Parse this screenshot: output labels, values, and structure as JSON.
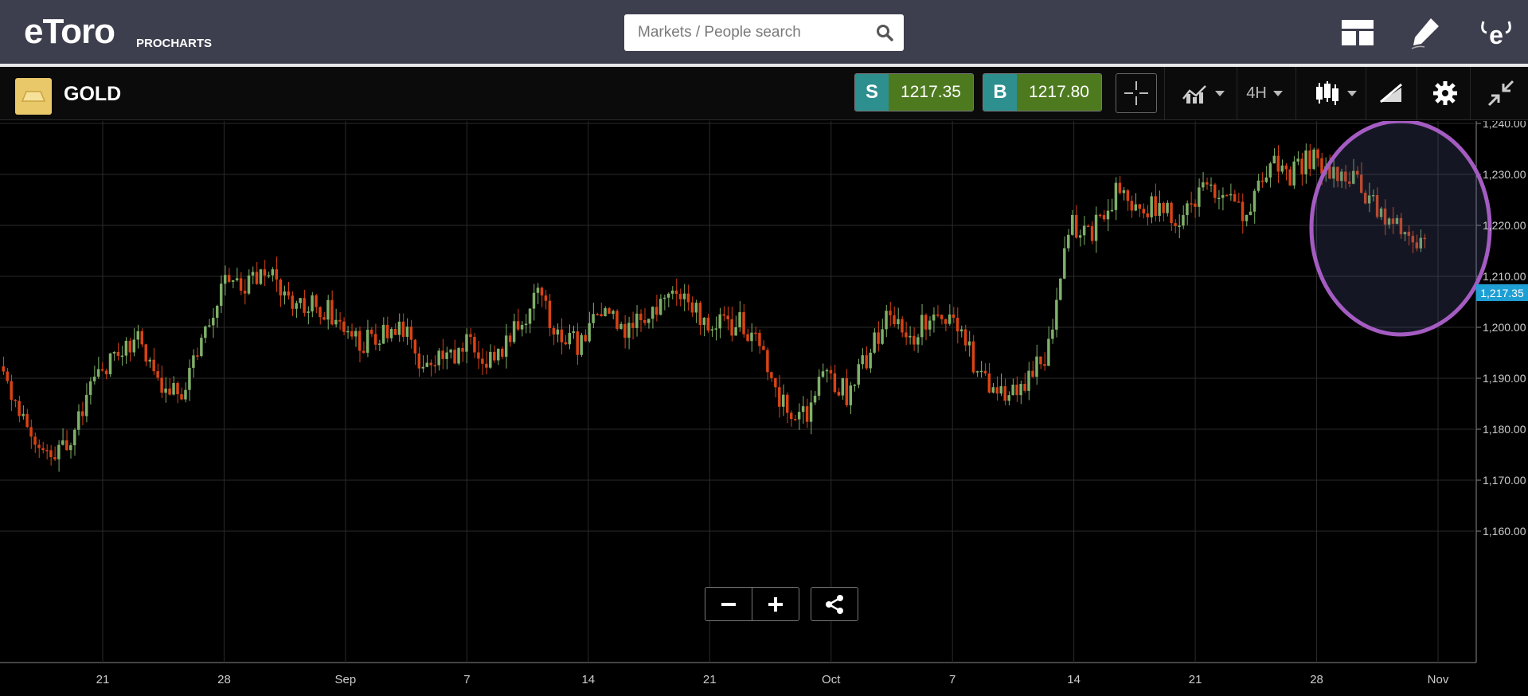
{
  "header": {
    "logo_text": "eToro",
    "logo_sub": "PROCHARTS",
    "search_placeholder": "Markets / People search",
    "icons": [
      "layout-icon",
      "pencil-icon",
      "user-icon"
    ]
  },
  "toolbar": {
    "asset_name": "GOLD",
    "sell": {
      "tag": "S",
      "price": "1217.35"
    },
    "buy": {
      "tag": "B",
      "price": "1217.80"
    },
    "timeframe": "4H",
    "icons": [
      "crosshair-icon",
      "indicators-icon",
      "candles-icon",
      "drawing-icon",
      "gear-icon",
      "collapse-icon"
    ]
  },
  "colors": {
    "up": "#7fb069",
    "down": "#d84315",
    "highlight": "#a45cc2",
    "price_tag": "#1e9fd4"
  },
  "chart": {
    "current_price_label": "1,217.35"
  },
  "chart_data": {
    "type": "candlestick",
    "instrument": "GOLD",
    "timeframe": "4H",
    "x_tick_labels": [
      "21",
      "28",
      "Sep",
      "7",
      "14",
      "21",
      "Oct",
      "7",
      "14",
      "21",
      "28",
      "Nov"
    ],
    "y_tick_labels": [
      "1,240.00",
      "1,230.00",
      "1,220.00",
      "1,210.00",
      "1,200.00",
      "1,190.00",
      "1,180.00",
      "1,170.00",
      "1,160.00"
    ],
    "ylim": [
      1160,
      1242
    ],
    "grid": true,
    "current_price": 1217.35,
    "trend_closes": [
      1190,
      1182,
      1175,
      1178,
      1188,
      1195,
      1198,
      1190,
      1187,
      1198,
      1210,
      1208,
      1212,
      1204,
      1205,
      1202,
      1197,
      1198,
      1199,
      1192,
      1194,
      1197,
      1193,
      1199,
      1206,
      1199,
      1196,
      1205,
      1199,
      1202,
      1207,
      1203,
      1200,
      1201,
      1198,
      1186,
      1182,
      1190,
      1187,
      1195,
      1203,
      1199,
      1202,
      1200,
      1190,
      1187,
      1189,
      1195,
      1220,
      1219,
      1226,
      1225,
      1223,
      1221,
      1227,
      1225,
      1222,
      1232,
      1230,
      1234,
      1230,
      1228,
      1222,
      1218,
      1217.35
    ],
    "annotation": "circle highlighting latest decline"
  }
}
